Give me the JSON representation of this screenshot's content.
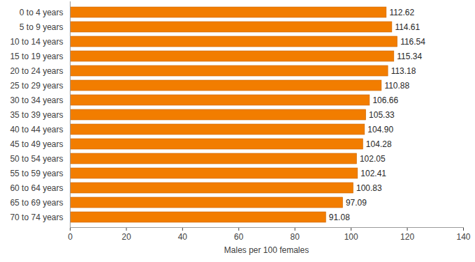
{
  "chart_data": {
    "type": "bar",
    "orientation": "horizontal",
    "x_label": "Males per 100 females",
    "categories": [
      "0 to 4 years",
      "5 to 9 years",
      "10 to 14 years",
      "15 to 19 years",
      "20 to 24 years",
      "25 to 29 years",
      "30 to 34 years",
      "35 to 39 years",
      "40 to 44 years",
      "45 to 49 years",
      "50 to 54 years",
      "55 to 59 years",
      "60 to 64 years",
      "65 to 69 years",
      "70 to 74 years"
    ],
    "values": [
      112.62,
      114.61,
      116.54,
      115.34,
      113.18,
      110.88,
      106.66,
      105.33,
      104.9,
      104.28,
      102.05,
      102.41,
      100.83,
      97.09,
      91.08
    ],
    "value_labels": [
      "112.62",
      "114.61",
      "116.54",
      "115.34",
      "113.18",
      "110.88",
      "106.66",
      "105.33",
      "104.90",
      "104.28",
      "102.05",
      "102.41",
      "100.83",
      "97.09",
      "91.08"
    ],
    "data_labels": true,
    "color": "#f27d00",
    "xlim": [
      0,
      140
    ],
    "xticks": [
      0,
      20,
      40,
      60,
      80,
      100,
      120,
      140
    ],
    "grid": false
  }
}
